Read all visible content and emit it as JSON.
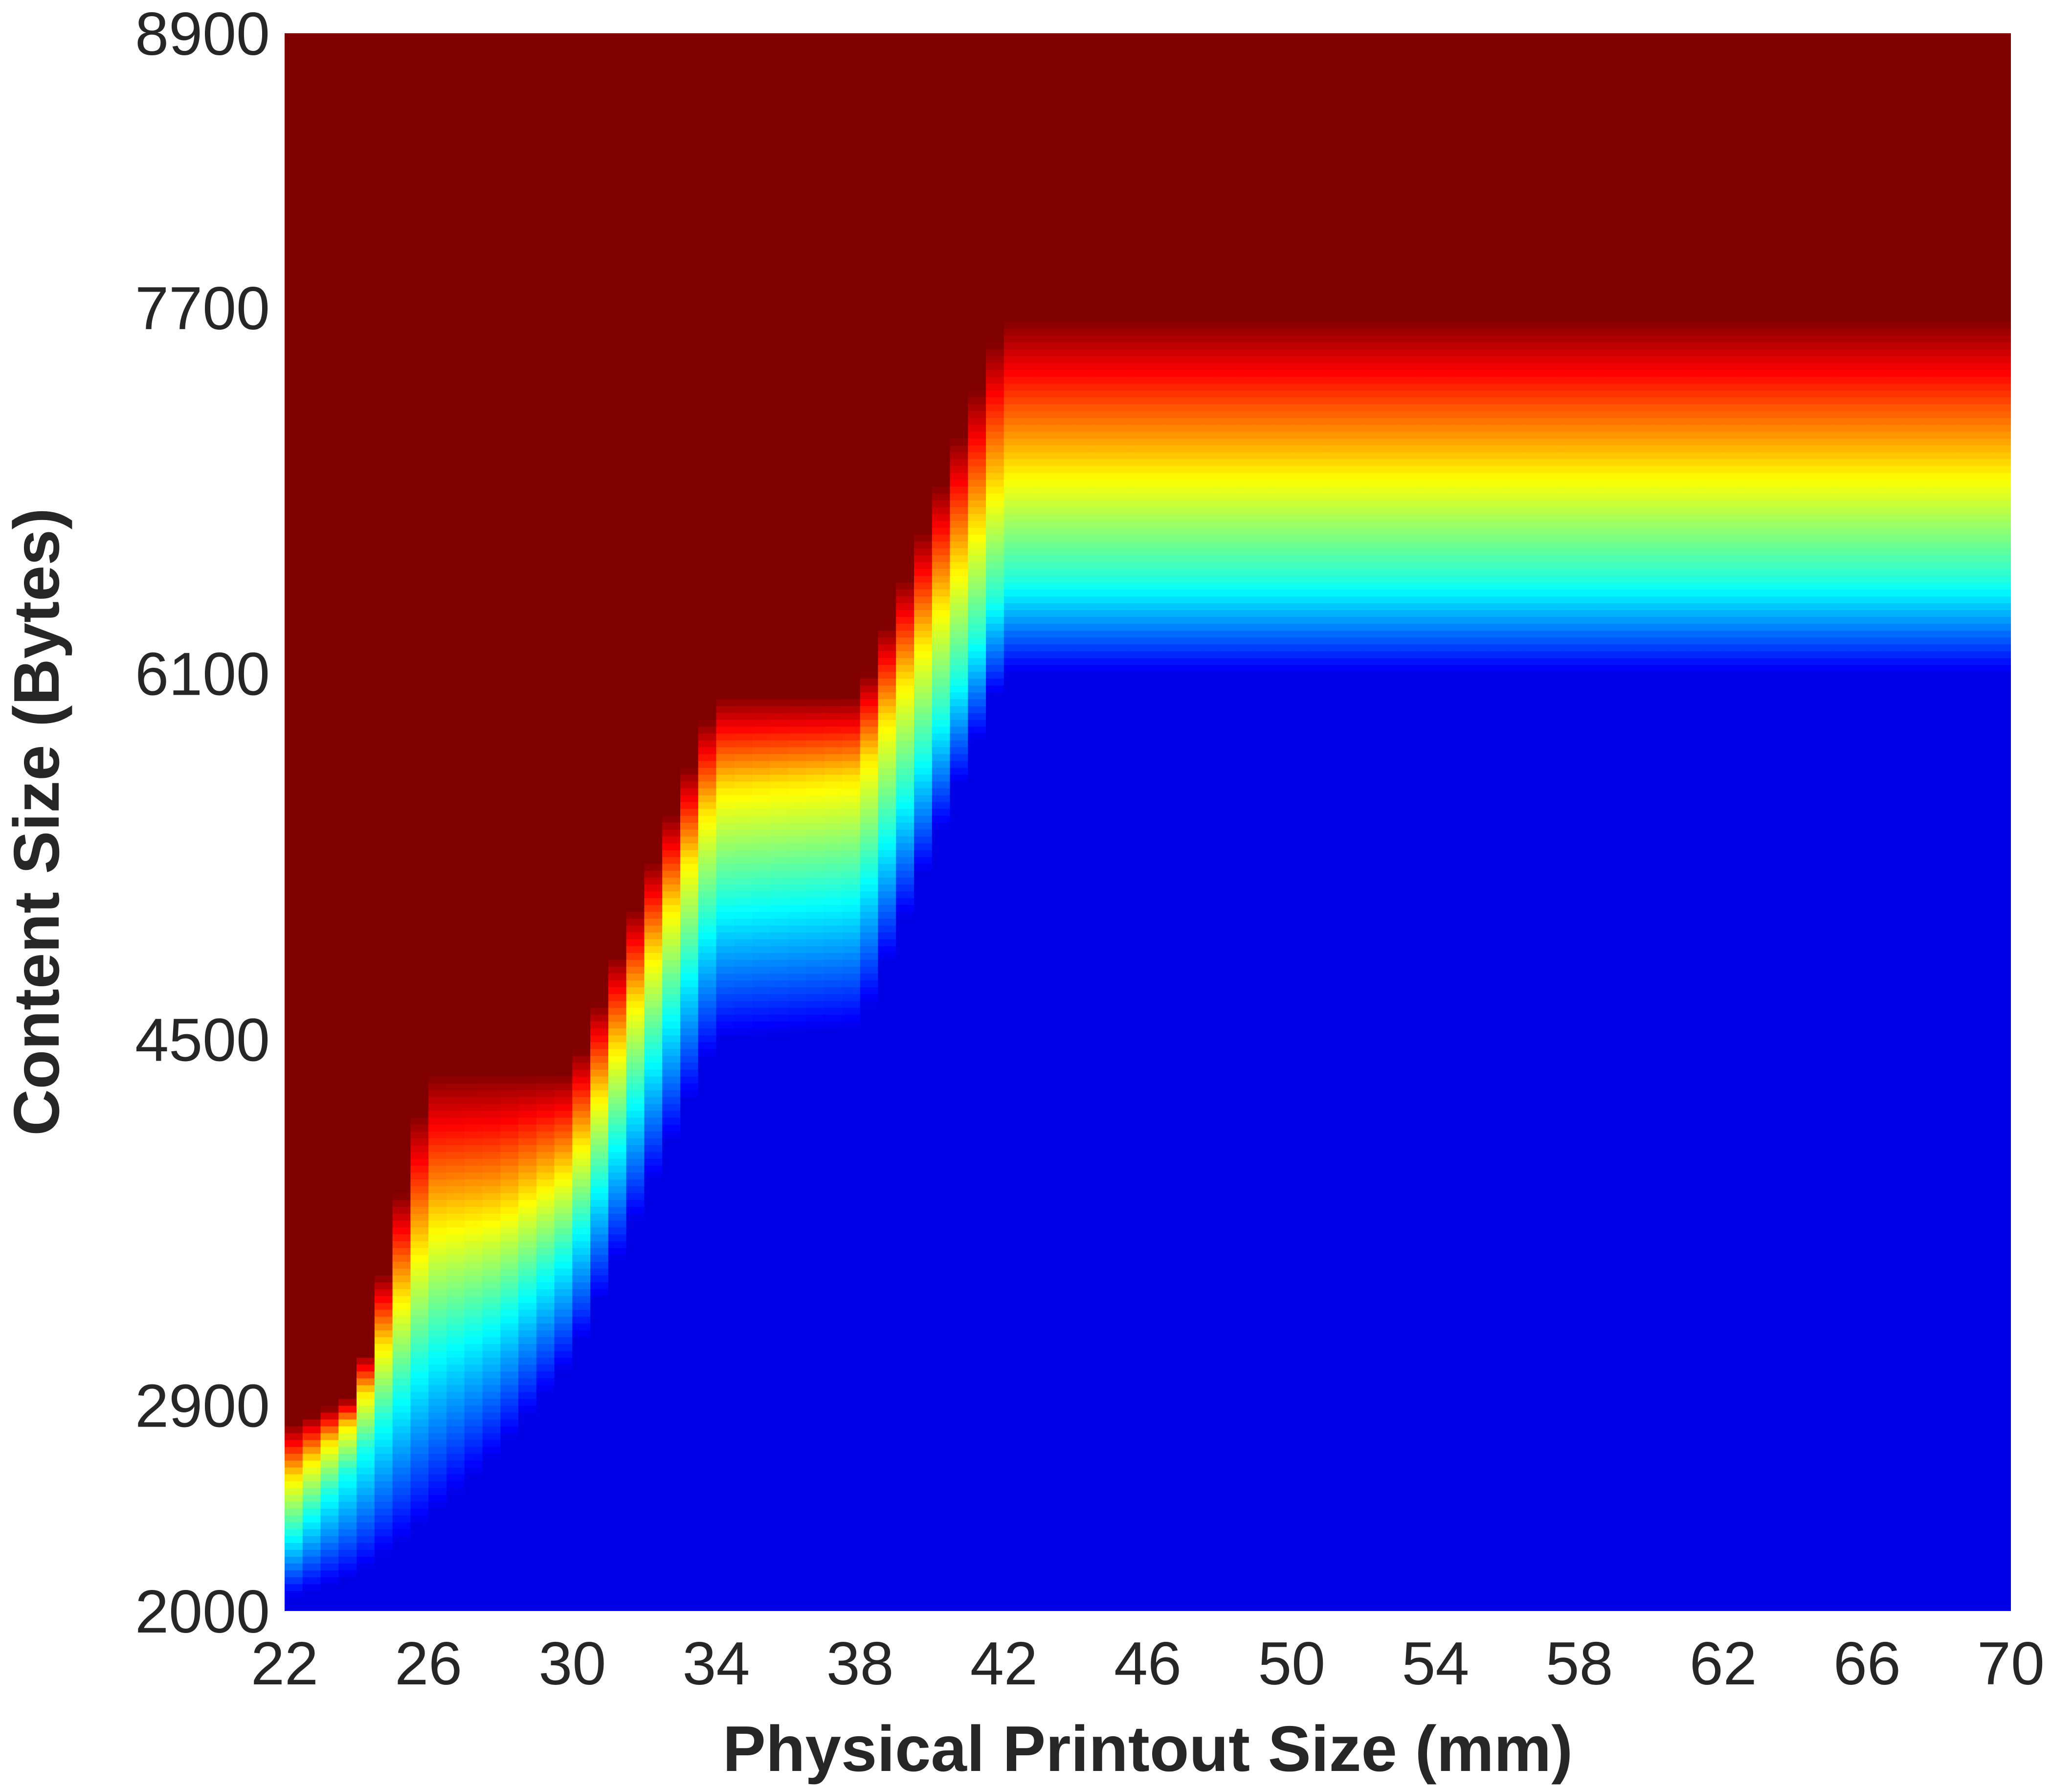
{
  "chart_data": {
    "type": "heatmap",
    "title": "",
    "xlabel": "Physical Printout Size (mm)",
    "ylabel": "Content Size (Bytes)",
    "xlim": [
      22,
      70
    ],
    "ylim": [
      2000,
      8900
    ],
    "x_ticks": [
      "22",
      "26",
      "30",
      "34",
      "38",
      "42",
      "46",
      "50",
      "54",
      "58",
      "62",
      "66",
      "70"
    ],
    "y_ticks": [
      "2000",
      "2900",
      "4500",
      "6100",
      "7700",
      "8900"
    ],
    "colormap": "jet",
    "color_low": "#00008b",
    "color_high": "#800000",
    "grid": false,
    "legend": "none",
    "series": [
      {
        "x": [
          22,
          24,
          26,
          28,
          30,
          34,
          38,
          42,
          46,
          50,
          54,
          58,
          62,
          66,
          70
        ],
        "transition_start": [
          2050,
          2150,
          2400,
          2700,
          3100,
          4500,
          4550,
          6100,
          6100,
          6100,
          6100,
          6100,
          6100,
          6100,
          6100
        ],
        "cyan_level": [
          2300,
          2650,
          3150,
          3300,
          3600,
          5100,
          5150,
          6500,
          6500,
          6500,
          6500,
          6500,
          6500,
          6500,
          6500
        ],
        "yellow_level": [
          2550,
          2850,
          3700,
          3750,
          3950,
          5600,
          5650,
          7000,
          7000,
          7000,
          7000,
          7000,
          7000,
          7000,
          7000
        ],
        "transition_end": [
          2800,
          2950,
          4350,
          4350,
          4350,
          6000,
          6000,
          7650,
          7650,
          7650,
          7650,
          7650,
          7650,
          7650,
          7650
        ]
      }
    ]
  }
}
